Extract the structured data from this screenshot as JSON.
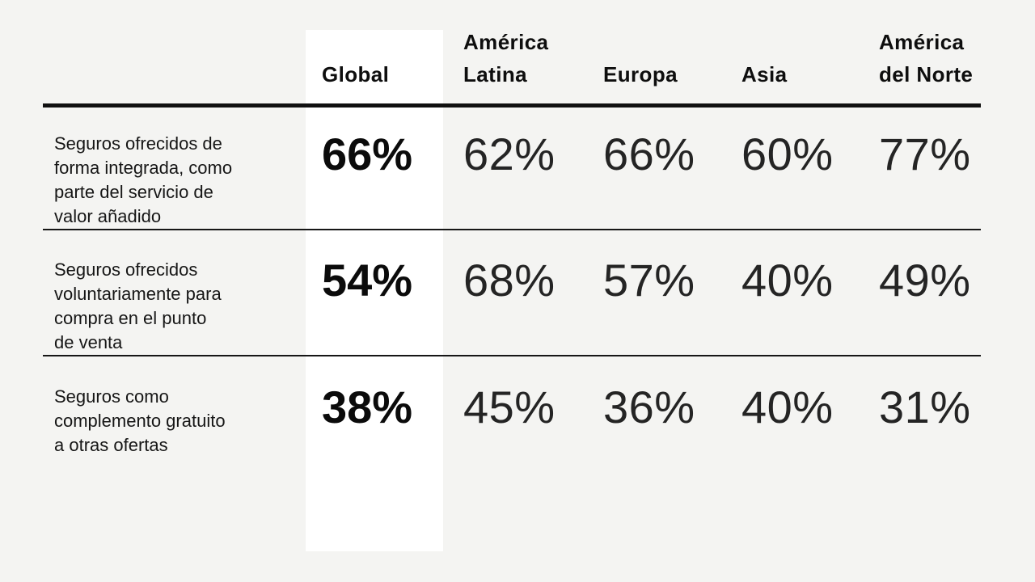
{
  "page": {
    "background_color": "#f4f4f2",
    "highlight_color": "#ffffff",
    "rule_color": "#101010",
    "text_color": "#161616"
  },
  "table": {
    "highlighted_column": "Global",
    "columns": [
      {
        "key": "global",
        "label": "Global"
      },
      {
        "key": "america_latina",
        "label": "América\nLatina"
      },
      {
        "key": "europa",
        "label": "Europa"
      },
      {
        "key": "asia",
        "label": "Asia"
      },
      {
        "key": "america_del_norte",
        "label": "América\ndel Norte"
      }
    ],
    "rows": [
      {
        "label": "Seguros ofrecidos de\nforma integrada, como\nparte del servicio de\nvalor añadido",
        "cells": [
          "66%",
          "62%",
          "66%",
          "60%",
          "77%"
        ]
      },
      {
        "label": "Seguros ofrecidos\nvoluntariamente para\ncompra en el punto\nde venta",
        "cells": [
          "54%",
          "68%",
          "57%",
          "40%",
          "49%"
        ]
      },
      {
        "label": "Seguros como\ncomplemento gratuito\na otras ofertas",
        "cells": [
          "38%",
          "45%",
          "36%",
          "40%",
          "31%"
        ]
      }
    ]
  },
  "chart_data": {
    "type": "table",
    "title": "",
    "categories": [
      "Global",
      "América Latina",
      "Europa",
      "Asia",
      "América del Norte"
    ],
    "series": [
      {
        "name": "Seguros ofrecidos de forma integrada, como parte del servicio de valor añadido",
        "values": [
          66,
          62,
          66,
          60,
          77
        ]
      },
      {
        "name": "Seguros ofrecidos voluntariamente para compra en el punto de venta",
        "values": [
          54,
          68,
          57,
          40,
          49
        ]
      },
      {
        "name": "Seguros como complemento gratuito a otras ofertas",
        "values": [
          38,
          45,
          36,
          40,
          31
        ]
      }
    ],
    "unit": "%",
    "highlight_column": "Global",
    "layout": "rows are offer types, columns are regions; Global column highlighted white and bold"
  }
}
